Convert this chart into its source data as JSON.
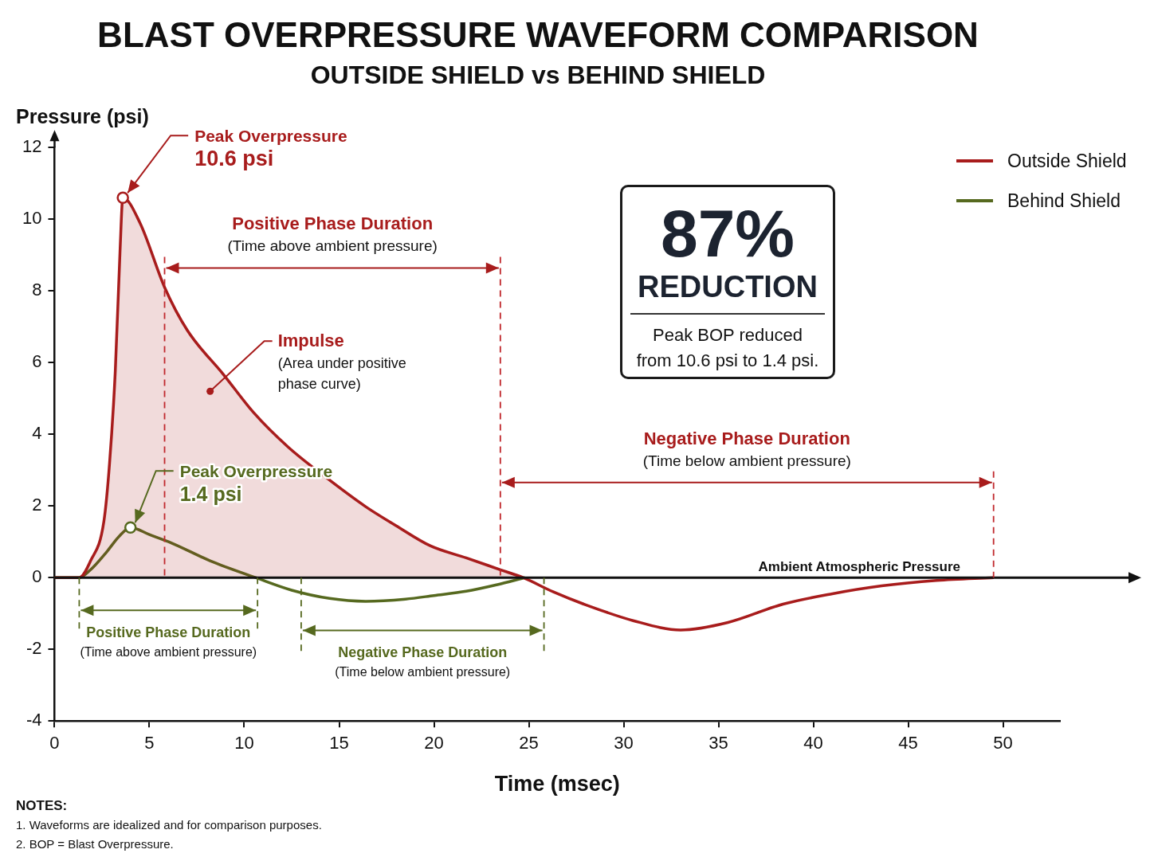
{
  "chart_data": {
    "type": "line",
    "title": "BLAST OVERPRESSURE WAVEFORM COMPARISON",
    "subtitle": "OUTSIDE SHIELD vs BEHIND SHIELD",
    "xlabel": "Time (msec)",
    "ylabel": "Pressure (psi)",
    "xlim": [
      0,
      53
    ],
    "xticks": [
      0,
      5,
      10,
      15,
      20,
      25,
      30,
      35,
      40,
      45,
      50
    ],
    "ylim": [
      -4,
      12
    ],
    "yticks": [
      -4,
      -2,
      0,
      2,
      4,
      6,
      8,
      10,
      12
    ],
    "grid": false,
    "legend": "top right",
    "series": [
      {
        "name": "Outside Shield",
        "type": "area",
        "color": "#a81c1c",
        "x": [
          0,
          1.3,
          1.9,
          2.6,
          2.9,
          3.2,
          3.45,
          3.6,
          4.5,
          5.8,
          7,
          8.9,
          10.5,
          12.3,
          14.3,
          16.4,
          18,
          19.8,
          21.7,
          23.5,
          24.7,
          26.3,
          27.9,
          30.5,
          33,
          35.5,
          38.4,
          41,
          43.6,
          46.5,
          49.5
        ],
        "values": [
          0,
          0,
          0.47,
          1.57,
          3.2,
          5.75,
          9.1,
          10.6,
          9.9,
          8.1,
          6.9,
          5.67,
          4.6,
          3.65,
          2.8,
          1.98,
          1.45,
          0.89,
          0.55,
          0.22,
          0,
          -0.4,
          -0.74,
          -1.2,
          -1.46,
          -1.25,
          -0.74,
          -0.45,
          -0.23,
          -0.08,
          0
        ]
      },
      {
        "name": "Behind Shield",
        "type": "line",
        "color": "#56691f",
        "x": [
          0,
          1.3,
          1.9,
          2.75,
          3.4,
          4,
          5,
          6.15,
          8.2,
          10.6,
          12.5,
          14.5,
          16.4,
          18.5,
          20,
          21.7,
          23.3,
          24.8
        ],
        "values": [
          0,
          0,
          0.22,
          0.72,
          1.15,
          1.4,
          1.2,
          0.97,
          0.47,
          0,
          -0.35,
          -0.58,
          -0.66,
          -0.6,
          -0.5,
          -0.38,
          -0.2,
          0
        ]
      }
    ],
    "ref_lines": [
      {
        "axis": "y",
        "value": 0,
        "label": "Ambient Atmospheric Pressure",
        "color": "#111111",
        "line_style": "solid"
      },
      {
        "axis": "x",
        "value": 5.8,
        "color": "#c0282d",
        "line_style": "dashed"
      },
      {
        "axis": "x",
        "value": 23.5,
        "color": "#c0282d",
        "line_style": "dashed"
      },
      {
        "axis": "x",
        "value": 49.5,
        "color": "#c0282d",
        "line_style": "dashed"
      },
      {
        "axis": "x",
        "value": 1.3,
        "color": "#56691f",
        "line_style": "dashed"
      },
      {
        "axis": "x",
        "value": 10.7,
        "color": "#56691f",
        "line_style": "dashed"
      },
      {
        "axis": "x",
        "value": 13,
        "color": "#56691f",
        "line_style": "dashed"
      },
      {
        "axis": "x",
        "value": 25.8,
        "color": "#56691f",
        "line_style": "dashed"
      }
    ],
    "annotations": [
      {
        "text": "Peak Overpressure\n10.6 psi",
        "x": 3.6,
        "y": 10.6
      },
      {
        "text": "Peak Overpressure\n1.4 psi",
        "x": 4,
        "y": 1.4
      },
      "Positive Phase Duration\n(Time above ambient pressure)",
      "Negative Phase Duration\n(Time below ambient pressure)",
      "Positive Phase Duration\n(Time above ambient pressure)",
      "Negative Phase Duration\n(Time below ambient pressure)",
      {
        "text": "Impulse\n(Area under positive\nphase curve)",
        "x": 8.2,
        "y": 5.2
      },
      "87%",
      "REDUCTION",
      "Peak BOP reduced\nfrom 10.6 psi to 1.4 psi.",
      "NOTES:",
      "1.  Waveforms are idealized and for comparison purposes.",
      "2.  BOP = Blast Overpressure."
    ]
  }
}
